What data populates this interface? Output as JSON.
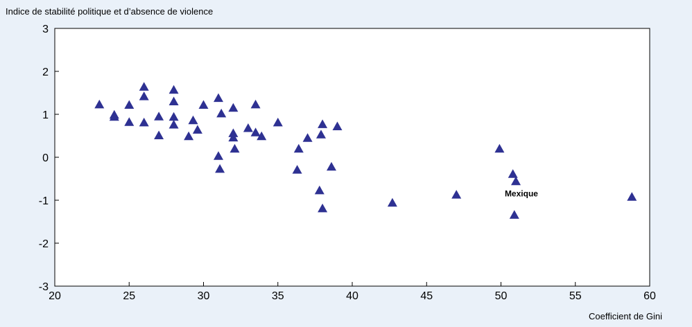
{
  "chart_data": {
    "type": "scatter",
    "title": "Indice de stabilité politique et d’absence de violence",
    "xlabel": "Coefficient de Gini",
    "ylabel": "Indice de stabilité politique et d’absence de violence",
    "xlim": [
      20,
      60
    ],
    "ylim": [
      -3,
      3
    ],
    "xticks": [
      "20",
      "25",
      "30",
      "35",
      "40",
      "45",
      "50",
      "55",
      "60"
    ],
    "yticks": [
      "3",
      "2",
      "1",
      "0",
      "-1",
      "-2",
      "-3"
    ],
    "grid": false,
    "marker": "triangle",
    "colors": {
      "marker": "#2e3192",
      "background": "#eaf1f9",
      "plot_area": "#ffffff"
    },
    "annotations": [
      {
        "text": "Mexique",
        "x": 51.0,
        "y": -0.85
      }
    ],
    "series": [
      {
        "points": [
          [
            23.0,
            1.22
          ],
          [
            24.0,
            0.98
          ],
          [
            24.0,
            0.93
          ],
          [
            25.0,
            1.21
          ],
          [
            25.0,
            0.81
          ],
          [
            26.0,
            1.63
          ],
          [
            26.0,
            1.41
          ],
          [
            26.0,
            0.8
          ],
          [
            27.0,
            0.94
          ],
          [
            27.0,
            0.5
          ],
          [
            28.0,
            1.56
          ],
          [
            28.0,
            1.29
          ],
          [
            28.0,
            0.93
          ],
          [
            28.0,
            0.75
          ],
          [
            29.0,
            0.48
          ],
          [
            29.3,
            0.85
          ],
          [
            29.6,
            0.63
          ],
          [
            30.0,
            1.21
          ],
          [
            31.0,
            1.37
          ],
          [
            31.2,
            1.01
          ],
          [
            31.0,
            0.02
          ],
          [
            31.1,
            -0.28
          ],
          [
            32.0,
            1.14
          ],
          [
            32.0,
            0.55
          ],
          [
            32.0,
            0.45
          ],
          [
            32.1,
            0.19
          ],
          [
            33.0,
            0.67
          ],
          [
            33.5,
            1.22
          ],
          [
            33.5,
            0.57
          ],
          [
            33.9,
            0.48
          ],
          [
            35.0,
            0.8
          ],
          [
            36.3,
            -0.3
          ],
          [
            36.4,
            0.19
          ],
          [
            37.0,
            0.44
          ],
          [
            37.8,
            -0.78
          ],
          [
            37.9,
            0.52
          ],
          [
            38.0,
            0.76
          ],
          [
            38.0,
            -1.2
          ],
          [
            38.6,
            -0.23
          ],
          [
            39.0,
            0.71
          ],
          [
            42.7,
            -1.07
          ],
          [
            47.0,
            -0.88
          ],
          [
            49.9,
            0.19
          ],
          [
            50.8,
            -0.4
          ],
          [
            51.0,
            -0.57
          ],
          [
            50.9,
            -1.35
          ],
          [
            58.8,
            -0.93
          ]
        ]
      }
    ]
  }
}
